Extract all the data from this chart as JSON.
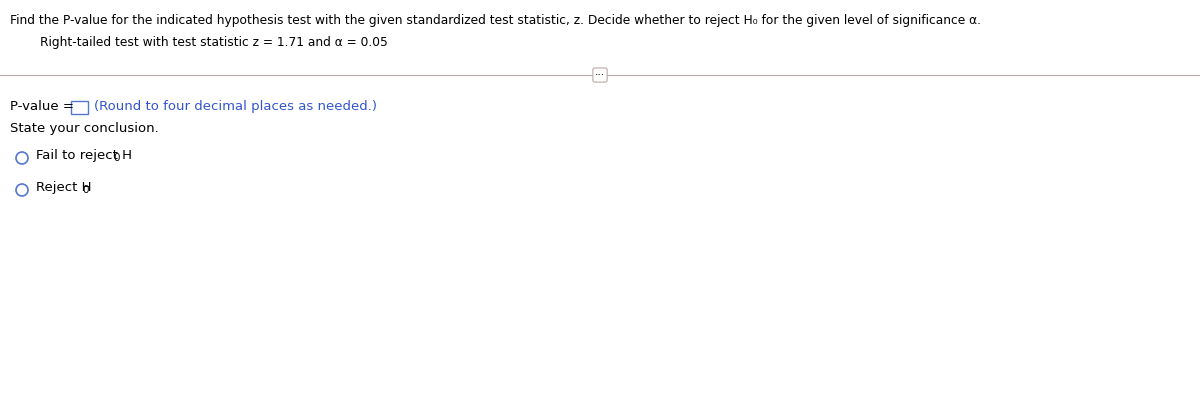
{
  "bg_color": "#ffffff",
  "title_text": "Find the P-value for the indicated hypothesis test with the given standardized test statistic, z. Decide whether to reject H₀ for the given level of significance α.",
  "subtitle_text": "Right-tailed test with test statistic z = 1.71 and α = 0.05",
  "pvalue_label": "P-value = ",
  "pvalue_hint": "(Round to four decimal places as needed.)",
  "conclusion_label": "State your conclusion.",
  "option1_main": "Fail to reject H",
  "option1_sub": "0",
  "option2_main": "Reject H",
  "option2_sub": "0",
  "title_fontsize": 8.8,
  "subtitle_fontsize": 8.8,
  "body_fontsize": 9.5,
  "small_fontsize": 7.5,
  "text_color": "#000000",
  "blue_color": "#3355CC",
  "separator_color": "#b8a8a8",
  "circle_color": "#5577CC",
  "box_color": "#5577CC",
  "dots_text": "···"
}
